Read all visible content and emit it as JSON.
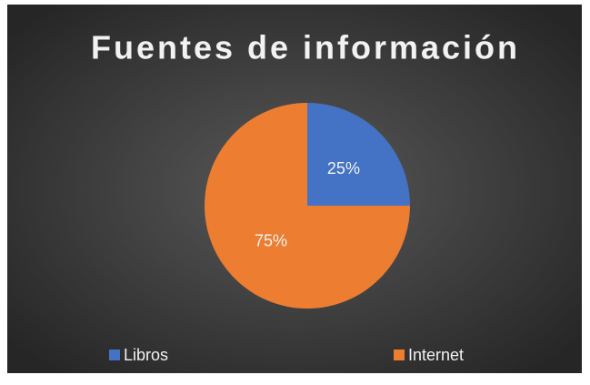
{
  "chart_data": {
    "type": "pie",
    "title": "Fuentes de información",
    "categories": [
      "Libros",
      "Internet"
    ],
    "values": [
      25,
      75
    ],
    "value_labels": [
      "25%",
      "75%"
    ],
    "colors": [
      "#4472c4",
      "#ed7d31"
    ],
    "legend": "bottom"
  }
}
